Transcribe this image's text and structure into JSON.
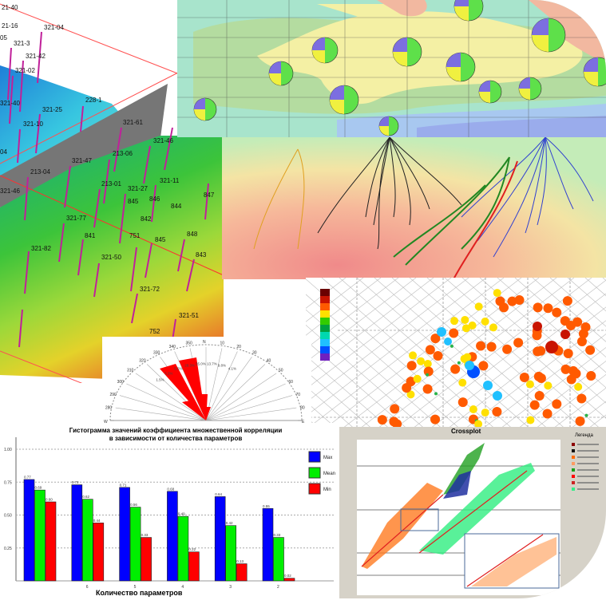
{
  "surface_3d": {
    "well_labels": [
      "21-40",
      "21-16",
      "321-04",
      "05",
      "321-3",
      "321-42",
      "321-02",
      "321-40",
      "228-1",
      "321-25",
      "321-10",
      "321-61",
      "04",
      "321-47",
      "213-06",
      "321-46",
      "213-04",
      "321-46",
      "213-01",
      "321-11",
      "321-27",
      "845",
      "846",
      "844",
      "321-77",
      "842",
      "841",
      "751",
      "845",
      "848",
      "321-82",
      "321-50",
      "843",
      "321-72",
      "321-51",
      "752",
      "847"
    ]
  },
  "rose_diagram": {
    "labels": [
      "N",
      "10",
      "20",
      "30",
      "40",
      "50",
      "60",
      "70",
      "80",
      "E",
      "350",
      "340",
      "330",
      "320",
      "310",
      "300",
      "290",
      "280",
      "W"
    ],
    "percent_labels": [
      "35.0%",
      "28.3%",
      "13.7%",
      "9.8%",
      "4.1%",
      "5.5%",
      "3.2%",
      "1.5%"
    ]
  },
  "crossplot": {
    "title": "Crossplot",
    "legend_title": "Легенда",
    "legend_colors": [
      "#8b0000",
      "#111111",
      "#ff6a00",
      "#ff9a60",
      "#1a9e1a",
      "#ff0000",
      "#cc2222",
      "#33ee88"
    ]
  },
  "colors": {
    "max": "#0000ff",
    "mean": "#00ee00",
    "min": "#ff0000"
  },
  "chart_data": {
    "type": "bar",
    "title": "Гистограмма значений коэффициента множественной корреляции",
    "subtitle": "в зависимости от количества параметров",
    "xlabel": "Количество параметров",
    "ylabel": "",
    "ylim": [
      0,
      1
    ],
    "yticks": [
      "1.00",
      "0.75",
      "0.50",
      "0.25"
    ],
    "categories": [
      "",
      "6",
      "5",
      "4",
      "3",
      "2"
    ],
    "series": [
      {
        "name": "Max",
        "values": [
          0.77,
          0.73,
          0.71,
          0.68,
          0.64,
          0.55
        ]
      },
      {
        "name": "Mean",
        "values": [
          0.69,
          0.62,
          0.56,
          0.49,
          0.42,
          0.33
        ]
      },
      {
        "name": "Min",
        "values": [
          0.6,
          0.44,
          0.33,
          0.22,
          0.13,
          0.02
        ]
      }
    ],
    "legend": "right",
    "grid": true
  }
}
